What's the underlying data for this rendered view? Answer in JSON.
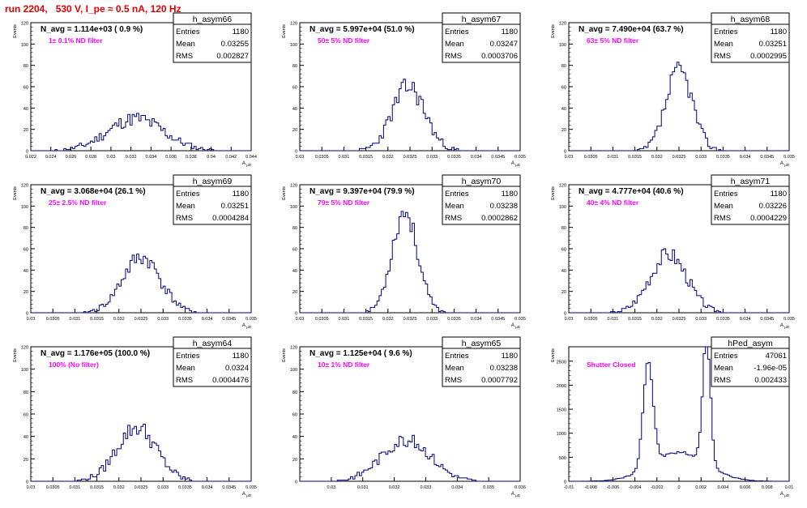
{
  "run_title": "run 2204,   530 V, I_pe ≈ 0.5 nA, 120 Hz",
  "colors": {
    "title": "#e00000",
    "histogram": "#000080",
    "annotation": "#ff00ff",
    "frame": "#000000"
  },
  "chart_data": [
    {
      "type": "bar",
      "name": "h_asym66",
      "stats": [
        [
          "Entries",
          "1180"
        ],
        [
          "Mean",
          "0.03255"
        ],
        [
          "RMS",
          "0.002827"
        ]
      ],
      "navg": "N_avg = 1.114e+03 ( 0.9 %)",
      "filter": "1± 0.1% ND filter",
      "ylabel": "Events",
      "xlabel": "A_{μD}",
      "xlim": [
        0.022,
        0.044
      ],
      "ylim": [
        0,
        120
      ],
      "yticks": [
        "0",
        "20",
        "40",
        "60",
        "80",
        "100",
        "120"
      ],
      "xticks": [
        "0.022",
        "0.024",
        "0.026",
        "0.028",
        "0.03",
        "0.032",
        "0.034",
        "0.036",
        "0.038",
        "0.04",
        "0.042",
        "0.044"
      ],
      "peaks": [
        [
          0.0325,
          0.0028,
          30
        ]
      ],
      "noise": 7,
      "seed": 11
    },
    {
      "type": "bar",
      "name": "h_asym67",
      "stats": [
        [
          "Entries",
          "1180"
        ],
        [
          "Mean",
          "0.03247"
        ],
        [
          "RMS",
          "0.0003706"
        ]
      ],
      "navg": "N_avg = 5.997e+04 (51.0 %)",
      "filter": "50± 5% ND filter",
      "ylabel": "Events",
      "xlabel": "A_{μD}",
      "xlim": [
        0.03,
        0.035
      ],
      "ylim": [
        0,
        120
      ],
      "yticks": [
        "0",
        "20",
        "40",
        "60",
        "80",
        "100",
        "120"
      ],
      "xticks": [
        "0.03",
        "0.0305",
        "0.031",
        "0.0315",
        "0.032",
        "0.0325",
        "0.033",
        "0.0335",
        "0.034",
        "0.0345",
        "0.035"
      ],
      "peaks": [
        [
          0.03247,
          0.00037,
          60
        ]
      ],
      "noise": 10,
      "seed": 23
    },
    {
      "type": "bar",
      "name": "h_asym68",
      "stats": [
        [
          "Entries",
          "1180"
        ],
        [
          "Mean",
          "0.03251"
        ],
        [
          "RMS",
          "0.0002995"
        ]
      ],
      "navg": "N_avg = 7.490e+04 (63.7 %)",
      "filter": "63± 5% ND filter",
      "ylabel": "Events",
      "xlabel": "A_{μD}",
      "xlim": [
        0.03,
        0.035
      ],
      "ylim": [
        0,
        120
      ],
      "yticks": [
        "0",
        "20",
        "40",
        "60",
        "80",
        "100",
        "120"
      ],
      "xticks": [
        "0.03",
        "0.0305",
        "0.031",
        "0.0315",
        "0.032",
        "0.0325",
        "0.033",
        "0.0335",
        "0.034",
        "0.0345",
        "0.035"
      ],
      "peaks": [
        [
          0.03251,
          0.0003,
          75
        ]
      ],
      "noise": 10,
      "seed": 37
    },
    {
      "type": "bar",
      "name": "h_asym69",
      "stats": [
        [
          "Entries",
          "1180"
        ],
        [
          "Mean",
          "0.03251"
        ],
        [
          "RMS",
          "0.0004284"
        ]
      ],
      "navg": "N_avg = 3.068e+04 (26.1 %)",
      "filter": "25± 2.5% ND filter",
      "ylabel": "Events",
      "xlabel": "A_{μD}",
      "xlim": [
        0.03,
        0.035
      ],
      "ylim": [
        0,
        120
      ],
      "yticks": [
        "0",
        "20",
        "40",
        "60",
        "80",
        "100",
        "120"
      ],
      "xticks": [
        "0.03",
        "0.0305",
        "0.031",
        "0.0315",
        "0.032",
        "0.0325",
        "0.033",
        "0.0335",
        "0.034",
        "0.0345",
        "0.035"
      ],
      "peaks": [
        [
          0.03251,
          0.00043,
          52
        ]
      ],
      "noise": 8,
      "seed": 41
    },
    {
      "type": "bar",
      "name": "h_asym70",
      "stats": [
        [
          "Entries",
          "1180"
        ],
        [
          "Mean",
          "0.03238"
        ],
        [
          "RMS",
          "0.0002862"
        ]
      ],
      "navg": "N_avg = 9.397e+04 (79.9 %)",
      "filter": "79± 5% ND filter",
      "ylabel": "Events",
      "xlabel": "A_{μD}",
      "xlim": [
        0.03,
        0.035
      ],
      "ylim": [
        0,
        120
      ],
      "yticks": [
        "0",
        "20",
        "40",
        "60",
        "80",
        "100",
        "120"
      ],
      "xticks": [
        "0.03",
        "0.0305",
        "0.031",
        "0.0315",
        "0.032",
        "0.0325",
        "0.033",
        "0.0335",
        "0.034",
        "0.0345",
        "0.035"
      ],
      "peaks": [
        [
          0.03238,
          0.00029,
          95
        ]
      ],
      "noise": 10,
      "seed": 53
    },
    {
      "type": "bar",
      "name": "h_asym71",
      "stats": [
        [
          "Entries",
          "1180"
        ],
        [
          "Mean",
          "0.03226"
        ],
        [
          "RMS",
          "0.0004229"
        ]
      ],
      "navg": "N_avg = 4.777e+04 (40.6 %)",
      "filter": "40± 4% ND filter",
      "ylabel": "Events",
      "xlabel": "A_{μD}",
      "xlim": [
        0.03,
        0.035
      ],
      "ylim": [
        0,
        120
      ],
      "yticks": [
        "0",
        "20",
        "40",
        "60",
        "80",
        "100",
        "120"
      ],
      "xticks": [
        "0.03",
        "0.0305",
        "0.031",
        "0.0315",
        "0.032",
        "0.0325",
        "0.033",
        "0.0335",
        "0.034",
        "0.0345",
        "0.035"
      ],
      "peaks": [
        [
          0.03226,
          0.00042,
          55
        ]
      ],
      "noise": 8,
      "seed": 67
    },
    {
      "type": "bar",
      "name": "h_asym64",
      "stats": [
        [
          "Entries",
          "1180"
        ],
        [
          "Mean",
          "0.0324"
        ],
        [
          "RMS",
          "0.0004476"
        ]
      ],
      "navg": "N_avg = 1.176e+05 (100.0 %)",
      "filter": "100% (No filter)",
      "ylabel": "Events",
      "xlabel": "A_{μD}",
      "xlim": [
        0.03,
        0.035
      ],
      "ylim": [
        0,
        120
      ],
      "yticks": [
        "0",
        "20",
        "40",
        "60",
        "80",
        "100",
        "120"
      ],
      "xticks": [
        "0.03",
        "0.0305",
        "0.031",
        "0.0315",
        "0.032",
        "0.0325",
        "0.033",
        "0.0335",
        "0.034",
        "0.0345",
        "0.035"
      ],
      "peaks": [
        [
          0.0324,
          0.00045,
          48
        ]
      ],
      "noise": 8,
      "seed": 79
    },
    {
      "type": "bar",
      "name": "h_asym65",
      "stats": [
        [
          "Entries",
          "1180"
        ],
        [
          "Mean",
          "0.03238"
        ],
        [
          "RMS",
          "0.0007792"
        ]
      ],
      "navg": "N_avg = 1.125e+04 ( 9.6 %)",
      "filter": "10± 1% ND filter",
      "ylabel": "Events",
      "xlabel": "A_{μD}",
      "xlim": [
        0.029,
        0.036
      ],
      "ylim": [
        0,
        120
      ],
      "yticks": [
        "0",
        "20",
        "40",
        "60",
        "80",
        "100",
        "120"
      ],
      "xticks": [
        "0.03",
        "0.031",
        "0.032",
        "0.033",
        "0.034",
        "0.035",
        "0.036"
      ],
      "peaks": [
        [
          0.03238,
          0.00078,
          37
        ]
      ],
      "noise": 6,
      "seed": 83
    },
    {
      "type": "bar",
      "name": "hPed_asym",
      "stats": [
        [
          "Entries",
          "47061"
        ],
        [
          "Mean",
          "-1.96e-05"
        ],
        [
          "RMS",
          "0.002433"
        ]
      ],
      "navg": "",
      "filter": "Shutter Closed",
      "ylabel": "Events",
      "xlabel": "A_{μD}",
      "xlim": [
        -0.01,
        0.01
      ],
      "ylim": [
        0,
        2800
      ],
      "yticks": [
        "0",
        "500",
        "1000",
        "1500",
        "2000",
        "2500"
      ],
      "xticks": [
        "-0.01",
        "-0.008",
        "-0.006",
        "-0.004",
        "-0.002",
        "0",
        "0.002",
        "0.004",
        "0.006",
        "0.008",
        "0.01"
      ],
      "peaks": [
        [
          -0.0028,
          0.00045,
          2200
        ],
        [
          0.0025,
          0.00035,
          2650
        ],
        [
          0.0,
          0.0025,
          600
        ]
      ],
      "noise": 60,
      "seed": 97
    }
  ]
}
